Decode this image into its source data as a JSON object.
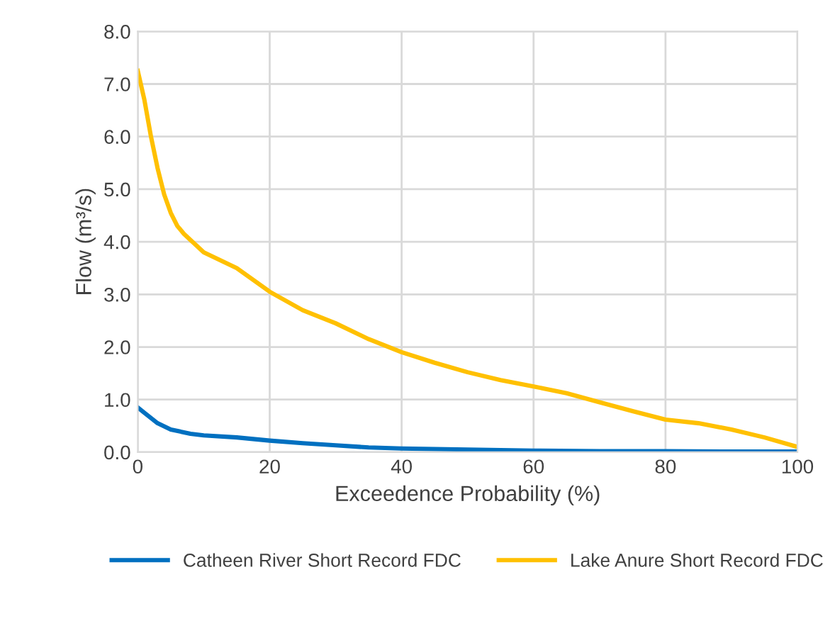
{
  "chart_data": {
    "type": "line",
    "xlabel": "Exceedence Probability (%)",
    "ylabel": "Flow (m³/s)",
    "xlim": [
      0,
      100
    ],
    "xticks": [
      0,
      20,
      40,
      60,
      80,
      100
    ],
    "ylim": [
      0,
      8
    ],
    "yticks": [
      {
        "value": 0,
        "label": "0.0"
      },
      {
        "value": 1,
        "label": "1.0"
      },
      {
        "value": 2,
        "label": "2.0"
      },
      {
        "value": 3,
        "label": "3.0"
      },
      {
        "value": 4,
        "label": "4.0"
      },
      {
        "value": 5,
        "label": "5.0"
      },
      {
        "value": 6,
        "label": "6.0"
      },
      {
        "value": 7,
        "label": "7.0"
      },
      {
        "value": 8,
        "label": "8.0"
      }
    ],
    "grid": true,
    "legend": "bottom",
    "marker": "none",
    "line_style": "solid",
    "series": [
      {
        "name": "Catheen River Short Record FDC",
        "color": "#0070c0",
        "x": [
          0,
          1,
          3,
          5,
          8,
          10,
          15,
          20,
          25,
          30,
          35,
          40,
          50,
          60,
          70,
          80,
          90,
          100
        ],
        "values": [
          0.85,
          0.75,
          0.55,
          0.43,
          0.35,
          0.32,
          0.28,
          0.22,
          0.17,
          0.13,
          0.09,
          0.07,
          0.05,
          0.03,
          0.02,
          0.02,
          0.01,
          0.01
        ]
      },
      {
        "name": "Lake Anure Short Record FDC",
        "color": "#ffc000",
        "x": [
          0,
          1,
          2,
          3,
          4,
          5,
          6,
          7,
          10,
          15,
          20,
          25,
          30,
          35,
          40,
          45,
          50,
          55,
          60,
          65,
          70,
          75,
          80,
          85,
          90,
          95,
          100
        ],
        "values": [
          7.25,
          6.7,
          6.0,
          5.4,
          4.9,
          4.55,
          4.3,
          4.15,
          3.8,
          3.5,
          3.05,
          2.7,
          2.45,
          2.15,
          1.9,
          1.7,
          1.52,
          1.37,
          1.25,
          1.12,
          0.95,
          0.78,
          0.62,
          0.55,
          0.43,
          0.28,
          0.1
        ]
      }
    ]
  }
}
